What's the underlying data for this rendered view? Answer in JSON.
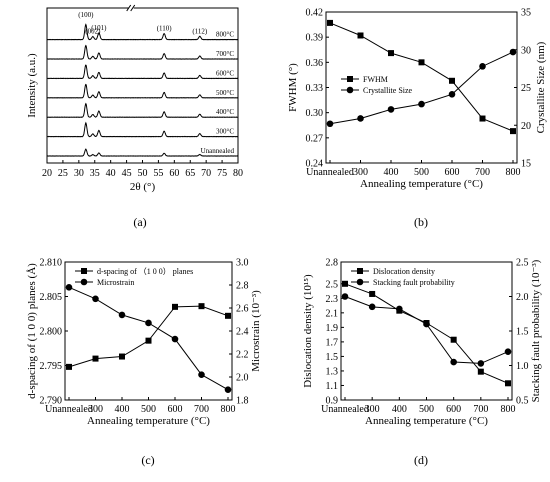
{
  "chart_data": [
    {
      "id": "a",
      "type": "line",
      "panel_label": "(a)",
      "xlabel": "2θ (°)",
      "ylabel": "Intensity (a.u.)",
      "xlim": [
        20,
        80
      ],
      "x_ticks": [
        "20",
        "25",
        "30",
        "35",
        "40",
        "45",
        "50",
        "55",
        "60",
        "65",
        "70",
        "75",
        "80"
      ],
      "axis_break": true,
      "peaks": [
        {
          "label": "(100)",
          "x": 32.2,
          "rel_height": 1.0
        },
        {
          "label": "(002)",
          "x": 34.4,
          "rel_height": 0.2
        },
        {
          "label": "(101)",
          "x": 36.3,
          "rel_height": 0.45
        },
        {
          "label": "(110)",
          "x": 56.8,
          "rel_height": 0.4
        },
        {
          "label": "(112)",
          "x": 68.0,
          "rel_height": 0.22
        }
      ],
      "series": [
        {
          "name": "Unannealed",
          "scale": 0.45
        },
        {
          "name": "300°C",
          "scale": 0.9
        },
        {
          "name": "400°C",
          "scale": 0.9
        },
        {
          "name": "500°C",
          "scale": 0.9
        },
        {
          "name": "600°C",
          "scale": 0.9
        },
        {
          "name": "700°C",
          "scale": 0.9
        },
        {
          "name": "800°C",
          "scale": 1.0
        }
      ]
    },
    {
      "id": "b",
      "type": "line",
      "panel_label": "(b)",
      "xlabel": "Annealing temperature (°C)",
      "categories": [
        "Unannealed",
        "300",
        "400",
        "500",
        "600",
        "700",
        "800"
      ],
      "x": [
        200,
        300,
        400,
        500,
        600,
        700,
        800
      ],
      "ylabel_left": "FWHM (°)",
      "ylim_left": [
        0.24,
        0.42
      ],
      "yticks_left": [
        "0.24",
        "0.27",
        "0.30",
        "0.33",
        "0.36",
        "0.39",
        "0.42"
      ],
      "ylabel_right": "Crystallite Size (nm)",
      "ylim_right": [
        15,
        35
      ],
      "yticks_right": [
        "15",
        "20",
        "25",
        "30",
        "35"
      ],
      "series": [
        {
          "name": "FWHM",
          "axis": "left",
          "marker": "square",
          "values": [
            0.407,
            0.392,
            0.371,
            0.36,
            0.338,
            0.293,
            0.278
          ]
        },
        {
          "name": "Crystallite Size",
          "axis": "right",
          "marker": "circle",
          "values": [
            20.2,
            20.9,
            22.1,
            22.8,
            24.1,
            27.8,
            29.7
          ]
        }
      ]
    },
    {
      "id": "c",
      "type": "line",
      "panel_label": "(c)",
      "xlabel": "Annealing temperature (°C)",
      "categories": [
        "Unannealed",
        "300",
        "400",
        "500",
        "600",
        "700",
        "800"
      ],
      "x": [
        200,
        300,
        400,
        500,
        600,
        700,
        800
      ],
      "ylabel_left": "d-spacing of (1 0 0) planes (Å)",
      "ylim_left": [
        2.79,
        2.81
      ],
      "yticks_left": [
        "2.790",
        "2.795",
        "2.800",
        "2.805",
        "2.810"
      ],
      "ylabel_right": "Microstrain (10⁻³)",
      "ylim_right": [
        1.8,
        3.0
      ],
      "yticks_right": [
        "1.8",
        "2.0",
        "2.2",
        "2.4",
        "2.6",
        "2.8",
        "3.0"
      ],
      "series": [
        {
          "name": "d-spacing of （1 0 0） planes",
          "axis": "left",
          "marker": "square",
          "values": [
            2.7948,
            2.796,
            2.7963,
            2.7986,
            2.8035,
            2.8036,
            2.8022
          ]
        },
        {
          "name": "Microstrain",
          "axis": "right",
          "marker": "circle",
          "values": [
            2.78,
            2.68,
            2.54,
            2.47,
            2.33,
            2.02,
            1.89
          ]
        }
      ]
    },
    {
      "id": "d",
      "type": "line",
      "panel_label": "(d)",
      "xlabel": "Annealing temperature (°C)",
      "categories": [
        "Unannealed",
        "300",
        "400",
        "500",
        "600",
        "700",
        "800"
      ],
      "x": [
        200,
        300,
        400,
        500,
        600,
        700,
        800
      ],
      "ylabel_left": "Dislocation density (10¹⁵)",
      "ylim_left": [
        0.9,
        2.8
      ],
      "yticks_left": [
        "0.9",
        "1.1",
        "1.3",
        "1.5",
        "1.7",
        "1.9",
        "2.1",
        "2.3",
        "2.5",
        "2.8"
      ],
      "ylabel_right": "Stacking fault probability (10⁻³)",
      "ylim_right": [
        0.5,
        2.5
      ],
      "yticks_right": [
        "0.5",
        "1.0",
        "1.5",
        "2.0",
        "2.5"
      ],
      "series": [
        {
          "name": "Dislocation density",
          "axis": "left",
          "marker": "square",
          "values": [
            2.5,
            2.36,
            2.13,
            1.96,
            1.73,
            1.29,
            1.13
          ]
        },
        {
          "name": "Stacking fault probability",
          "axis": "right",
          "marker": "circle",
          "values": [
            2.0,
            1.85,
            1.82,
            1.6,
            1.05,
            1.03,
            1.2
          ]
        }
      ]
    }
  ]
}
